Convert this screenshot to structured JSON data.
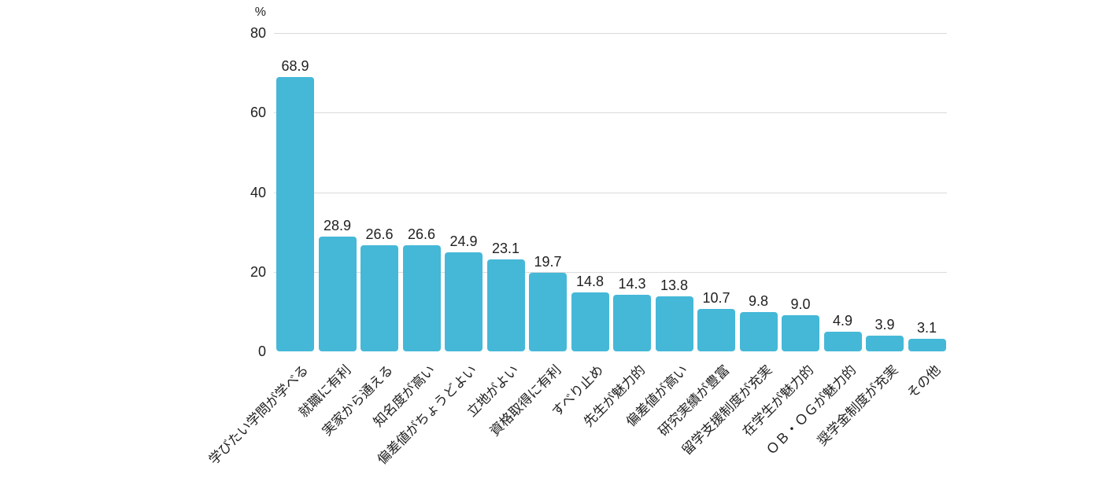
{
  "chart_data": {
    "type": "bar",
    "title": "",
    "unit_label": "%",
    "xlabel": "",
    "ylabel": "%",
    "ylim": [
      0,
      80
    ],
    "yticks": [
      0,
      20,
      40,
      60,
      80
    ],
    "grid": "horizontal-only",
    "legend": "none",
    "categories": [
      "学びたい学問が学べる",
      "就職に有利",
      "実家から通える",
      "知名度が高い",
      "偏差値がちょうどよい",
      "立地がよい",
      "資格取得に有利",
      "すべり止め",
      "先生が魅力的",
      "偏差値が高い",
      "研究実績が豊富",
      "留学支援制度が充実",
      "在学生が魅力的",
      "ＯＢ・ＯＧが魅力的",
      "奨学金制度が充実",
      "その他"
    ],
    "values": [
      68.9,
      28.9,
      26.6,
      26.6,
      24.9,
      23.1,
      19.7,
      14.8,
      14.3,
      13.8,
      10.7,
      9.8,
      9.0,
      4.9,
      3.9,
      3.1
    ],
    "value_labels": [
      "68.9",
      "28.9",
      "26.6",
      "26.6",
      "24.9",
      "23.1",
      "19.7",
      "14.8",
      "14.3",
      "13.8",
      "10.7",
      "9.8",
      "9.0",
      "4.9",
      "3.9",
      "3.1"
    ],
    "colors": {
      "bar": "#45B8D8",
      "gridline": "#DADADA",
      "text": "#212121",
      "background": "#FFFFFF"
    }
  }
}
